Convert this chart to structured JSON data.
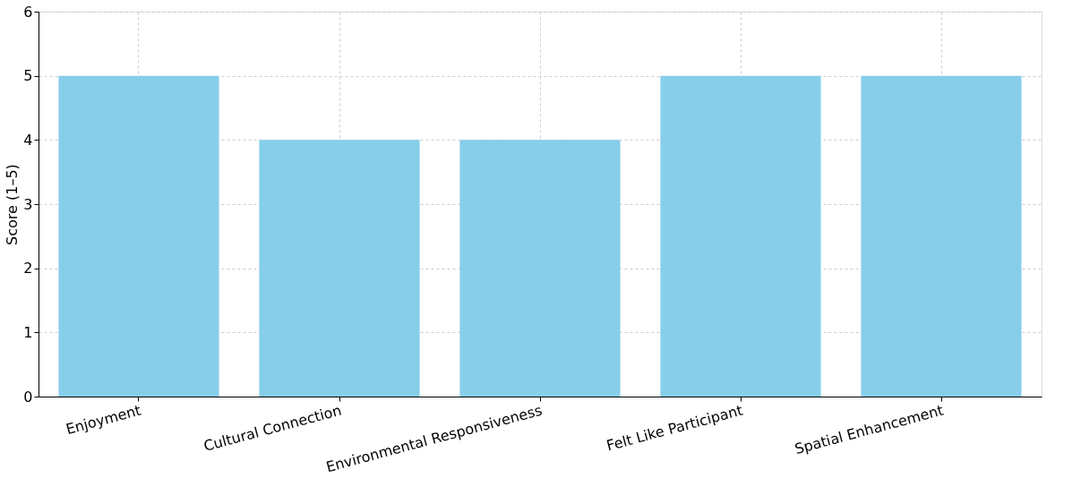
{
  "chart_data": {
    "type": "bar",
    "ylabel": "Score (1–5)",
    "categories": [
      "Enjoyment",
      "Cultural Connection",
      "Environmental Responsiveness",
      "Felt Like Participant",
      "Spatial Enhancement"
    ],
    "values": [
      5,
      4,
      4,
      5,
      5
    ],
    "color": "#87ceeb",
    "ylim": [
      0,
      6
    ],
    "yticks": [
      0,
      1,
      2,
      3,
      4,
      5,
      6
    ],
    "grid": true
  }
}
